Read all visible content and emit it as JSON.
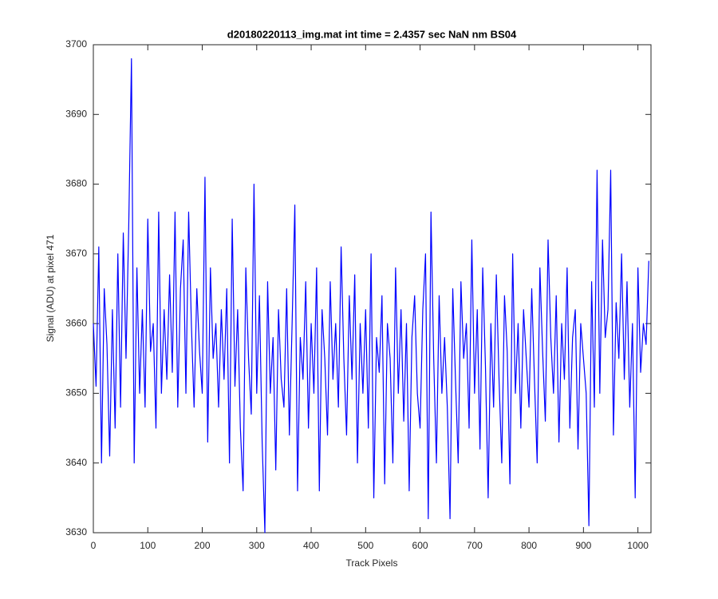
{
  "chart_data": {
    "type": "line",
    "title": "d20180220113_img.mat int time = 2.4357 sec  NaN nm BS04",
    "xlabel": "Track Pixels",
    "ylabel": "Signal (ADU) at pixel 471",
    "color": "#0000ff",
    "xlim": [
      0,
      1024
    ],
    "ylim": [
      3630,
      3700
    ],
    "xticks": [
      0,
      100,
      200,
      300,
      400,
      500,
      600,
      700,
      800,
      900,
      1000
    ],
    "yticks": [
      3630,
      3640,
      3650,
      3660,
      3670,
      3680,
      3690,
      3700
    ],
    "x": [
      0,
      5,
      10,
      15,
      20,
      25,
      30,
      35,
      40,
      45,
      50,
      55,
      60,
      65,
      70,
      75,
      80,
      85,
      90,
      95,
      100,
      105,
      110,
      115,
      120,
      125,
      130,
      135,
      140,
      145,
      150,
      155,
      160,
      165,
      170,
      175,
      180,
      185,
      190,
      195,
      200,
      205,
      210,
      215,
      220,
      225,
      230,
      235,
      240,
      245,
      250,
      255,
      260,
      265,
      270,
      275,
      280,
      285,
      290,
      295,
      300,
      305,
      310,
      315,
      320,
      325,
      330,
      335,
      340,
      345,
      350,
      355,
      360,
      365,
      370,
      375,
      380,
      385,
      390,
      395,
      400,
      405,
      410,
      415,
      420,
      425,
      430,
      435,
      440,
      445,
      450,
      455,
      460,
      465,
      470,
      475,
      480,
      485,
      490,
      495,
      500,
      505,
      510,
      515,
      520,
      525,
      530,
      535,
      540,
      545,
      550,
      555,
      560,
      565,
      570,
      575,
      580,
      585,
      590,
      595,
      600,
      605,
      610,
      615,
      620,
      625,
      630,
      635,
      640,
      645,
      650,
      655,
      660,
      665,
      670,
      675,
      680,
      685,
      690,
      695,
      700,
      705,
      710,
      715,
      720,
      725,
      730,
      735,
      740,
      745,
      750,
      755,
      760,
      765,
      770,
      775,
      780,
      785,
      790,
      795,
      800,
      805,
      810,
      815,
      820,
      825,
      830,
      835,
      840,
      845,
      850,
      855,
      860,
      865,
      870,
      875,
      880,
      885,
      890,
      895,
      900,
      905,
      910,
      915,
      920,
      925,
      930,
      935,
      940,
      945,
      950,
      955,
      960,
      965,
      970,
      975,
      980,
      985,
      990,
      995,
      1000,
      1005,
      1010,
      1015,
      1020
    ],
    "values": [
      3660,
      3651,
      3671,
      3640,
      3665,
      3657,
      3641,
      3662,
      3645,
      3670,
      3648,
      3673,
      3655,
      3674,
      3698,
      3640,
      3668,
      3650,
      3662,
      3648,
      3675,
      3656,
      3660,
      3645,
      3676,
      3650,
      3662,
      3652,
      3667,
      3653,
      3676,
      3648,
      3665,
      3672,
      3650,
      3676,
      3660,
      3648,
      3665,
      3656,
      3650,
      3681,
      3643,
      3668,
      3655,
      3660,
      3648,
      3662,
      3652,
      3665,
      3640,
      3675,
      3651,
      3662,
      3645,
      3636,
      3668,
      3655,
      3647,
      3680,
      3650,
      3664,
      3643,
      3630,
      3666,
      3650,
      3658,
      3639,
      3662,
      3652,
      3648,
      3665,
      3644,
      3660,
      3677,
      3636,
      3658,
      3652,
      3666,
      3645,
      3660,
      3650,
      3668,
      3636,
      3662,
      3655,
      3644,
      3666,
      3652,
      3660,
      3648,
      3671,
      3655,
      3644,
      3664,
      3652,
      3667,
      3640,
      3660,
      3650,
      3662,
      3645,
      3670,
      3635,
      3658,
      3653,
      3664,
      3637,
      3660,
      3655,
      3640,
      3668,
      3650,
      3662,
      3646,
      3660,
      3636,
      3658,
      3664,
      3650,
      3645,
      3662,
      3670,
      3632,
      3676,
      3655,
      3640,
      3664,
      3650,
      3658,
      3648,
      3632,
      3665,
      3652,
      3640,
      3666,
      3655,
      3660,
      3645,
      3672,
      3650,
      3662,
      3642,
      3668,
      3654,
      3635,
      3660,
      3648,
      3667,
      3652,
      3640,
      3664,
      3656,
      3637,
      3670,
      3650,
      3660,
      3645,
      3662,
      3655,
      3648,
      3665,
      3652,
      3640,
      3668,
      3656,
      3646,
      3672,
      3658,
      3650,
      3664,
      3643,
      3660,
      3652,
      3668,
      3645,
      3658,
      3662,
      3642,
      3660,
      3655,
      3650,
      3631,
      3666,
      3648,
      3682,
      3650,
      3672,
      3658,
      3662,
      3682,
      3644,
      3663,
      3655,
      3670,
      3652,
      3666,
      3648,
      3660,
      3635,
      3668,
      3653,
      3660,
      3657,
      3669
    ]
  }
}
